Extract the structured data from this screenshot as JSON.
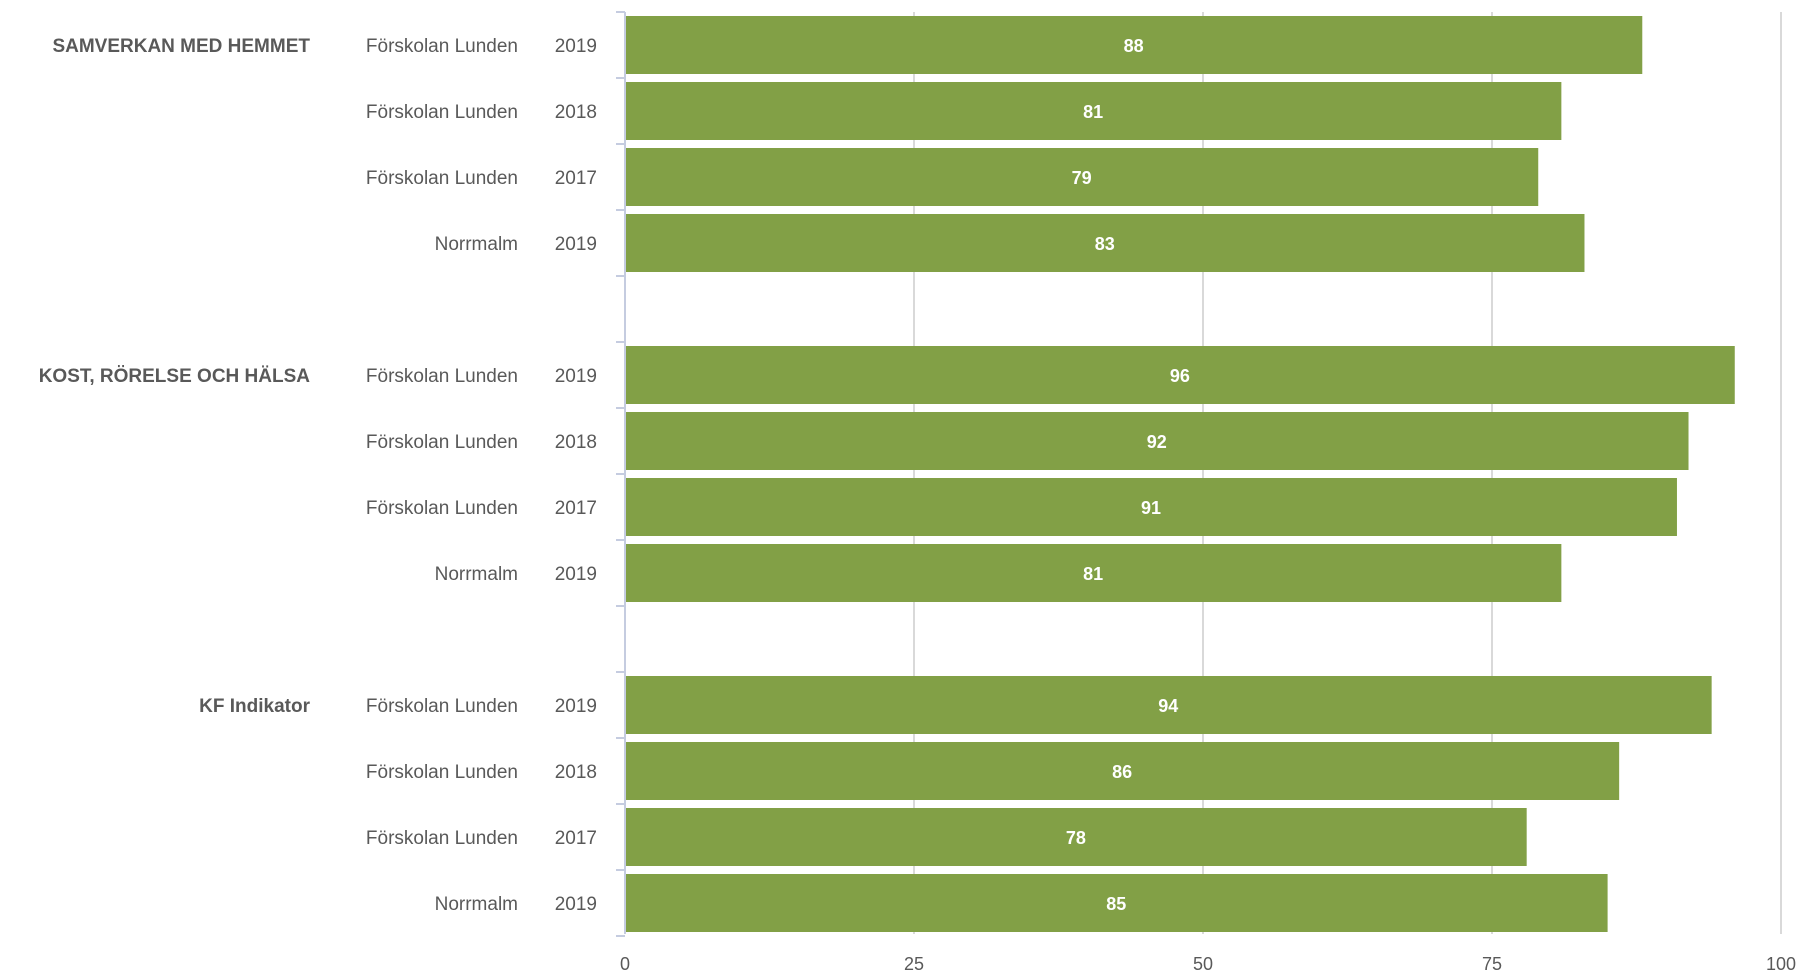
{
  "chart_data": {
    "type": "bar",
    "orientation": "horizontal",
    "bar_color": "#82a046",
    "grid_color": "#d9d9d9",
    "axis_color": "#c5cce0",
    "xlim": [
      0,
      100
    ],
    "x_ticks": [
      0,
      25,
      50,
      75,
      100
    ],
    "grid": true,
    "groups": [
      {
        "name": "SAMVERKAN MED HEMMET",
        "rows": [
          {
            "unit": "Förskolan Lunden",
            "year": "2019",
            "value": 88
          },
          {
            "unit": "Förskolan Lunden",
            "year": "2018",
            "value": 81
          },
          {
            "unit": "Förskolan Lunden",
            "year": "2017",
            "value": 79
          },
          {
            "unit": "Norrmalm",
            "year": "2019",
            "value": 83
          }
        ]
      },
      {
        "name": "KOST, RÖRELSE OCH HÄLSA",
        "rows": [
          {
            "unit": "Förskolan Lunden",
            "year": "2019",
            "value": 96
          },
          {
            "unit": "Förskolan Lunden",
            "year": "2018",
            "value": 92
          },
          {
            "unit": "Förskolan Lunden",
            "year": "2017",
            "value": 91
          },
          {
            "unit": "Norrmalm",
            "year": "2019",
            "value": 81
          }
        ]
      },
      {
        "name": "KF Indikator",
        "rows": [
          {
            "unit": "Förskolan Lunden",
            "year": "2019",
            "value": 94
          },
          {
            "unit": "Förskolan Lunden",
            "year": "2018",
            "value": 86
          },
          {
            "unit": "Förskolan Lunden",
            "year": "2017",
            "value": 78
          },
          {
            "unit": "Norrmalm",
            "year": "2019",
            "value": 85
          }
        ]
      }
    ]
  }
}
